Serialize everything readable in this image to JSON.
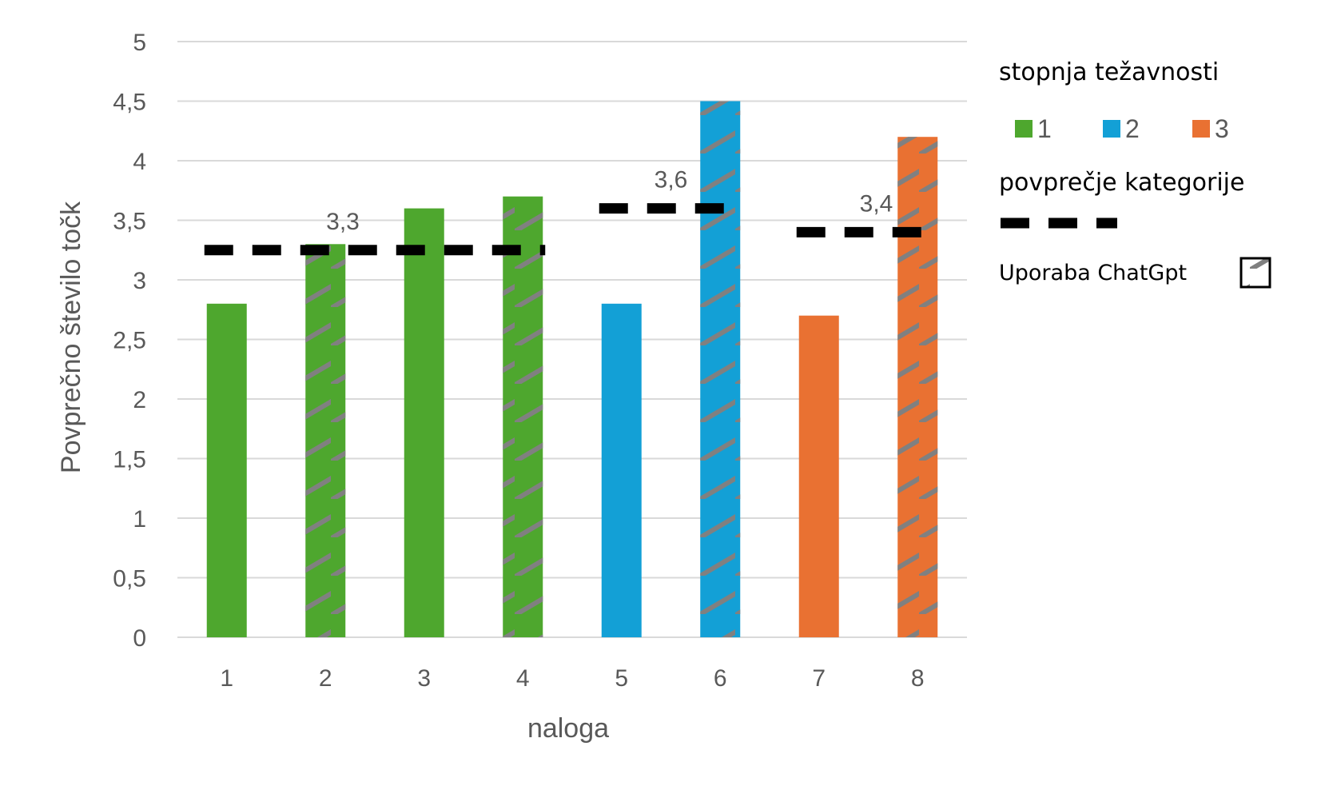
{
  "chart_data": {
    "type": "bar",
    "categories": [
      "1",
      "2",
      "3",
      "4",
      "5",
      "6",
      "7",
      "8"
    ],
    "values": [
      2.8,
      3.3,
      3.6,
      3.7,
      2.8,
      4.5,
      2.7,
      4.2
    ],
    "difficulty": [
      1,
      1,
      1,
      1,
      2,
      2,
      3,
      3
    ],
    "chatgpt_used": [
      false,
      true,
      false,
      true,
      false,
      true,
      false,
      true
    ],
    "category_averages": [
      {
        "difficulty": 1,
        "value": 3.25,
        "label": "3,3",
        "from_task": "1",
        "to_task": "4"
      },
      {
        "difficulty": 2,
        "value": 3.6,
        "label": "3,6",
        "from_task": "5",
        "to_task": "6"
      },
      {
        "difficulty": 3,
        "value": 3.4,
        "label": "3,4",
        "from_task": "7",
        "to_task": "8"
      }
    ],
    "colors": {
      "1": "#4ea72e",
      "2": "#13a0d6",
      "3": "#e97132",
      "grid": "#d9d9d9",
      "hatch": "#808080",
      "average": "#000000"
    },
    "xlabel": "naloga",
    "ylabel": "Povprečno število točk",
    "ylim": [
      0,
      5
    ],
    "yticks": [
      "0",
      "0,5",
      "1",
      "1,5",
      "2",
      "2,5",
      "3",
      "3,5",
      "4",
      "4,5",
      "5"
    ],
    "grid": true,
    "legend_position": "right",
    "legend": {
      "title": "stopnja težavnosti",
      "items": [
        {
          "label": "1",
          "color": "#4ea72e"
        },
        {
          "label": "2",
          "color": "#13a0d6"
        },
        {
          "label": "3",
          "color": "#e97132"
        }
      ],
      "average_label": "povprečje kategorije",
      "hatch_label": "Uporaba ChatGpt"
    }
  }
}
